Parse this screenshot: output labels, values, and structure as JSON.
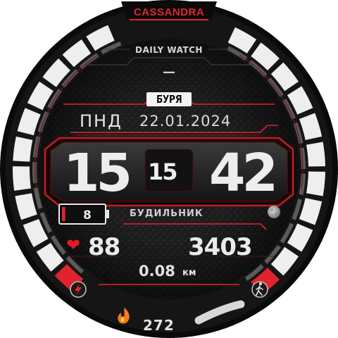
{
  "watchface": {
    "brand": "CASSANDRA",
    "subtitle": "DAILY WATCH",
    "top_dash": "—",
    "weather_label": "БУРЯ",
    "day_of_week": "ПНД",
    "date": "22.01.2024",
    "time": {
      "hours": "15",
      "seconds": "15",
      "minutes": "42"
    },
    "battery": {
      "value": "8",
      "level_percent": 8
    },
    "alarm_label": "БУДИЛЬНИК",
    "heart_rate": "88",
    "steps": "3403",
    "distance": {
      "value": "0.08",
      "unit": "км"
    },
    "calories": "272"
  },
  "icons": {
    "heart": "heart-icon",
    "moon": "moon-phase-icon",
    "charge": "lightning-icon",
    "walk": "walking-person-icon",
    "fire": "flame-icon"
  },
  "colors": {
    "accent_red": "#e0232e",
    "background": "#1a1a1a",
    "text": "#ececec",
    "segment_light": "#eeeeee"
  }
}
